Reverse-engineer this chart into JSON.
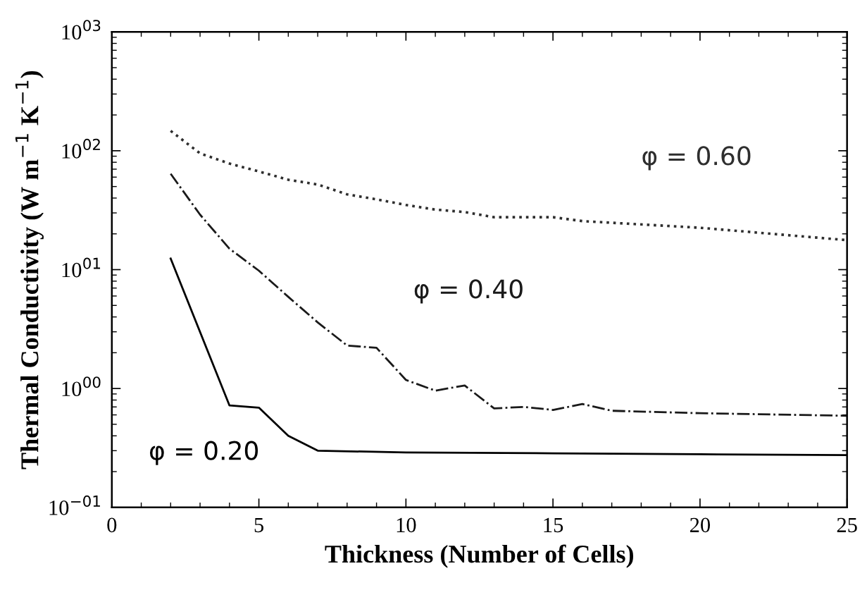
{
  "chart_data": {
    "type": "line",
    "xlabel": "Thickness (Number of Cells)",
    "ylabel": "Thermal Conductivity (W m$^{−1}$ K$^{−1}$)",
    "log": "y",
    "grid": false,
    "legend": false,
    "marker": "none",
    "xlim": [
      0,
      25
    ],
    "xticks": [
      0,
      5,
      10,
      15,
      20,
      25
    ],
    "ylim": [
      0.1,
      1000
    ],
    "yticks": [
      {
        "value": 0.1,
        "label": "10$^{−01}$"
      },
      {
        "value": 1,
        "label": "10$^{00}$"
      },
      {
        "value": 10,
        "label": "10$^{01}$"
      },
      {
        "value": 100,
        "label": "10$^{02}$"
      },
      {
        "value": 1000,
        "label": "10$^{03}$"
      }
    ],
    "series": [
      {
        "name": "φ = 0.20",
        "color": "#000000",
        "line_style": "solid",
        "x": [
          2,
          4,
          5,
          6,
          7,
          10,
          15,
          20,
          25
        ],
        "values": [
          12.4,
          0.72,
          0.69,
          0.4,
          0.3,
          0.29,
          0.285,
          0.28,
          0.275
        ]
      },
      {
        "name": "φ = 0.40",
        "color": "#1a1a1a",
        "line_style": "dashdot",
        "x": [
          2,
          3,
          4,
          5,
          6,
          7,
          8,
          9,
          10,
          11,
          12,
          13,
          14,
          15,
          16,
          17,
          20,
          25
        ],
        "values": [
          64,
          29,
          15,
          9.8,
          5.9,
          3.6,
          2.3,
          2.2,
          1.18,
          0.96,
          1.06,
          0.68,
          0.7,
          0.66,
          0.74,
          0.65,
          0.62,
          0.59
        ]
      },
      {
        "name": "φ = 0.60",
        "color": "#2e2e2e",
        "line_style": "dotted",
        "x": [
          2,
          3,
          4,
          5,
          6,
          7,
          8,
          9,
          10,
          11,
          12,
          13,
          15,
          16,
          20,
          25
        ],
        "values": [
          147,
          95,
          78,
          67,
          57,
          52,
          43,
          39,
          35,
          32,
          30.5,
          27.6,
          27.6,
          25.6,
          22.5,
          17.7
        ]
      }
    ]
  }
}
